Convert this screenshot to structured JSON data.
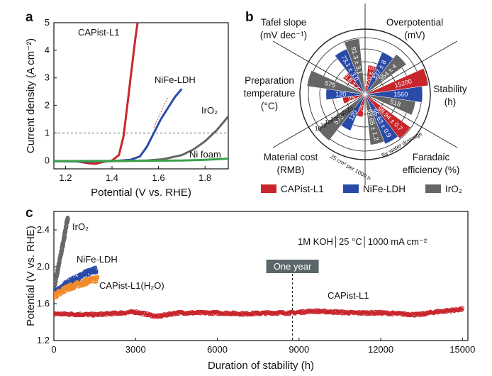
{
  "colors": {
    "capist": "#c8262c",
    "nife": "#2a4aa8",
    "iro2": "#666666",
    "nifoam": "#3aa24a",
    "capist_h2o": "#f08a2a",
    "badge": "#5a6668"
  },
  "chart_data": [
    {
      "type": "line",
      "panel": "a",
      "xlabel": "Potential (V vs. RHE)",
      "ylabel": "Current density (A cm⁻²)",
      "xlim": [
        1.15,
        1.9
      ],
      "ylim": [
        -0.3,
        5
      ],
      "x_ticks": [
        "1.2",
        "1.4",
        "1.6",
        "1.8"
      ],
      "y_ticks": [
        "0",
        "1",
        "2",
        "3",
        "4",
        "5"
      ],
      "reference_line": {
        "y": 1,
        "style": "dashed"
      },
      "series": [
        {
          "name": "CAPist-L1",
          "color_key": "capist",
          "points": [
            [
              1.15,
              -0.02
            ],
            [
              1.25,
              -0.03
            ],
            [
              1.3,
              -0.1
            ],
            [
              1.33,
              -0.12
            ],
            [
              1.36,
              -0.05
            ],
            [
              1.4,
              0.0
            ],
            [
              1.43,
              0.2
            ],
            [
              1.45,
              0.9
            ],
            [
              1.46,
              1.6
            ],
            [
              1.47,
              2.3
            ],
            [
              1.48,
              3.0
            ],
            [
              1.49,
              3.7
            ],
            [
              1.5,
              4.4
            ],
            [
              1.51,
              5.0
            ]
          ]
        },
        {
          "name": "NiFe-LDH",
          "color_key": "nife",
          "points": [
            [
              1.15,
              -0.02
            ],
            [
              1.3,
              -0.04
            ],
            [
              1.4,
              -0.02
            ],
            [
              1.48,
              0.03
            ],
            [
              1.52,
              0.15
            ],
            [
              1.55,
              0.5
            ],
            [
              1.58,
              1.0
            ],
            [
              1.61,
              1.5
            ],
            [
              1.64,
              1.9
            ],
            [
              1.67,
              2.3
            ],
            [
              1.7,
              2.6
            ]
          ]
        },
        {
          "name": "IrO₂",
          "color_key": "iro2",
          "points": [
            [
              1.15,
              -0.02
            ],
            [
              1.4,
              -0.02
            ],
            [
              1.55,
              0.0
            ],
            [
              1.62,
              0.05
            ],
            [
              1.7,
              0.2
            ],
            [
              1.75,
              0.4
            ],
            [
              1.8,
              0.7
            ],
            [
              1.85,
              1.1
            ],
            [
              1.9,
              1.6
            ]
          ]
        },
        {
          "name": "Ni foam",
          "color_key": "nifoam",
          "points": [
            [
              1.15,
              -0.02
            ],
            [
              1.5,
              -0.01
            ],
            [
              1.7,
              0.0
            ],
            [
              1.8,
              0.03
            ],
            [
              1.9,
              0.07
            ]
          ]
        }
      ],
      "annotations": [
        "CAPist-L1",
        "NiFe-LDH",
        "IrO₂",
        "Ni foam"
      ]
    },
    {
      "type": "polar-bar",
      "panel": "b",
      "categories": [
        {
          "label": "Overpotential",
          "unit": "(mV)"
        },
        {
          "label": "Stability",
          "unit": "(h)"
        },
        {
          "label": "Faradaic",
          "unit": "efficiency   (%)"
        },
        {
          "label": "Material cost",
          "unit": "(RMB)"
        },
        {
          "label": "Preparation",
          "unit": "temperature",
          "unit2": "(°C)"
        },
        {
          "label": "Tafel slope",
          "unit": "(mV dec⁻¹)"
        }
      ],
      "series": [
        {
          "name": "CAPist-L1",
          "color_key": "capist",
          "values": [
            "220 ± 5",
            "15200",
            "98.94 ± 0.7",
            "25",
            "25",
            "25.8 ± 2.3"
          ]
        },
        {
          "name": "NiFe-LDH",
          "color_key": "nife",
          "values": [
            "337 ± 8",
            "1560",
            "96.63 ± 0.9",
            "120",
            "120",
            "73.1 ± 3.0"
          ]
        },
        {
          "name": "IrO₂",
          "color_key": "iro2",
          "values": [
            "354 ± 4",
            "518",
            "93.65 ± 1.2",
            "575",
            "575",
            "91.3 ± 3.1"
          ]
        }
      ],
      "ring_labels": [
        "10⁴",
        "10³",
        "10²",
        "10¹",
        "10⁰",
        "10",
        "10"
      ],
      "notes": [
        "25 cm² per 1000 h",
        "By water drainage"
      ]
    },
    {
      "type": "scatter",
      "panel": "c",
      "xlabel": "Duration of stability (h)",
      "ylabel": "Potential (V vs. RHE)",
      "xlim": [
        0,
        15200
      ],
      "ylim": [
        1.2,
        2.6
      ],
      "x_ticks": [
        "0",
        "3000",
        "6000",
        "9000",
        "12000",
        "15000"
      ],
      "y_ticks": [
        "1.2",
        "1.6",
        "2.0",
        "2.4"
      ],
      "condition_text": "1M KOH│25 °C│1000 mA cm⁻²",
      "marker": {
        "x": 8760,
        "label": "One year"
      },
      "series": [
        {
          "name": "IrO₂",
          "color_key": "iro2",
          "points": [
            [
              0,
              1.76
            ],
            [
              100,
              1.9
            ],
            [
              200,
              2.05
            ],
            [
              300,
              2.2
            ],
            [
              400,
              2.35
            ],
            [
              450,
              2.45
            ],
            [
              518,
              2.52
            ]
          ]
        },
        {
          "name": "NiFe-LDH",
          "color_key": "nife",
          "points": [
            [
              0,
              1.7
            ],
            [
              300,
              1.78
            ],
            [
              600,
              1.84
            ],
            [
              900,
              1.88
            ],
            [
              1200,
              1.93
            ],
            [
              1560,
              1.97
            ]
          ]
        },
        {
          "name": "CAPist-L1(H₂O)",
          "color_key": "capist_h2o",
          "points": [
            [
              0,
              1.68
            ],
            [
              300,
              1.74
            ],
            [
              600,
              1.78
            ],
            [
              900,
              1.81
            ],
            [
              1200,
              1.84
            ],
            [
              1600,
              1.87
            ]
          ]
        },
        {
          "name": "CAPist-L1",
          "color_key": "capist",
          "points": [
            [
              0,
              1.49
            ],
            [
              1500,
              1.48
            ],
            [
              3000,
              1.51
            ],
            [
              3800,
              1.46
            ],
            [
              4500,
              1.5
            ],
            [
              6000,
              1.5
            ],
            [
              7000,
              1.49
            ],
            [
              8000,
              1.5
            ],
            [
              8760,
              1.5
            ],
            [
              9500,
              1.52
            ],
            [
              11000,
              1.5
            ],
            [
              12000,
              1.5
            ],
            [
              13400,
              1.48
            ],
            [
              14000,
              1.51
            ],
            [
              15000,
              1.54
            ]
          ]
        }
      ]
    }
  ],
  "labels": {
    "panel_a": "a",
    "panel_b": "b",
    "panel_c": "c",
    "a_capist": "CAPist-L1",
    "a_nife": "NiFe-LDH",
    "a_iro2": "IrO₂",
    "a_nifoam": "Ni foam",
    "c_iro2": "IrO₂",
    "c_nife": "NiFe-LDH",
    "c_capist_h2o": "CAPist-L1(H₂O)",
    "c_capist": "CAPist-L1",
    "c_one_year": "One year",
    "c_condition": "1M KOH│25 °C│1000 mA cm⁻²",
    "b_note1": "25 cm² per 1000 h",
    "b_note2": "By water drainage"
  },
  "legend": [
    {
      "name": "CAPist-L1",
      "color_key": "capist"
    },
    {
      "name": "NiFe-LDH",
      "color_key": "nife"
    },
    {
      "name": "IrO₂",
      "color_key": "iro2"
    }
  ]
}
